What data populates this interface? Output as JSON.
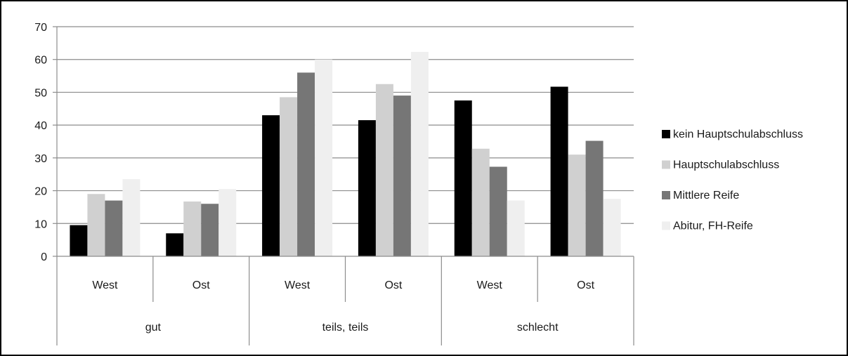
{
  "chart_data": {
    "type": "bar",
    "title": "",
    "xlabel": "",
    "ylabel": "",
    "ylim": [
      0,
      70
    ],
    "yticks": [
      0,
      10,
      20,
      30,
      40,
      50,
      60,
      70
    ],
    "grid": true,
    "legend_position": "right",
    "groups": [
      {
        "label": "gut",
        "categories": [
          "West",
          "Ost"
        ]
      },
      {
        "label": "teils, teils",
        "categories": [
          "West",
          "Ost"
        ]
      },
      {
        "label": "schlecht",
        "categories": [
          "West",
          "Ost"
        ]
      }
    ],
    "series": [
      {
        "name": "kein Hauptschulabschluss",
        "color": "#000000",
        "values": [
          9.5,
          7,
          43,
          41.5,
          47.5,
          51.7
        ]
      },
      {
        "name": "Hauptschulabschluss",
        "color": "#d0d0d0",
        "values": [
          19,
          16.7,
          48.5,
          52.5,
          32.8,
          31
        ]
      },
      {
        "name": "Mittlere Reife",
        "color": "#767676",
        "values": [
          17,
          16,
          56,
          49,
          27.3,
          35.2
        ]
      },
      {
        "name": "Abitur, FH-Reife",
        "color": "#efefef",
        "values": [
          23.5,
          20.5,
          60,
          62.3,
          17,
          17.5
        ]
      }
    ]
  }
}
